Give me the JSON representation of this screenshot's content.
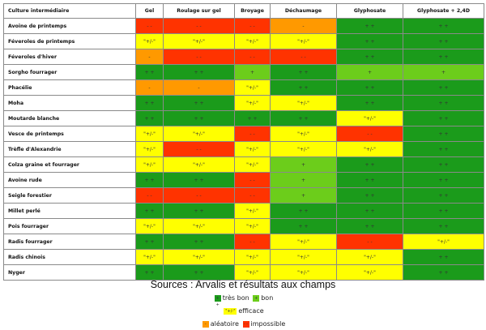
{
  "table": {
    "headers": [
      "Culture intermédiaire",
      "Gel",
      "Roulage sur gel",
      "Broyage",
      "Déchaumage",
      "Glyphosate",
      "Glyphosate + 2,4D"
    ],
    "rows": [
      {
        "name": "Avoine de printemps",
        "cells": [
          {
            "r": "im",
            "t": "- -"
          },
          {
            "r": "im",
            "t": "- -"
          },
          {
            "r": "im",
            "t": "- -"
          },
          {
            "r": "al",
            "t": "-"
          },
          {
            "r": "tb",
            "t": "+ +"
          },
          {
            "r": "tb",
            "t": "+ +"
          }
        ]
      },
      {
        "name": "Féveroles de printemps",
        "cells": [
          {
            "r": "ef",
            "t": "\"+/-\""
          },
          {
            "r": "ef",
            "t": "\"+/-\""
          },
          {
            "r": "ef",
            "t": "\"+/-\""
          },
          {
            "r": "ef",
            "t": "\"+/-\""
          },
          {
            "r": "tb",
            "t": "+ +"
          },
          {
            "r": "tb",
            "t": "+ +"
          }
        ]
      },
      {
        "name": "Féveroles d'hiver",
        "cells": [
          {
            "r": "al",
            "t": "-"
          },
          {
            "r": "im",
            "t": "- -"
          },
          {
            "r": "im",
            "t": "- -"
          },
          {
            "r": "im",
            "t": "- -"
          },
          {
            "r": "tb",
            "t": "+ +"
          },
          {
            "r": "tb",
            "t": "+ +"
          }
        ]
      },
      {
        "name": "Sorgho fourrager",
        "cells": [
          {
            "r": "tb",
            "t": "+ +"
          },
          {
            "r": "tb",
            "t": "+ +"
          },
          {
            "r": "bo",
            "t": "+"
          },
          {
            "r": "tb",
            "t": "+ +"
          },
          {
            "r": "bo",
            "t": "+"
          },
          {
            "r": "bo",
            "t": "+"
          }
        ]
      },
      {
        "name": "Phacélie",
        "cells": [
          {
            "r": "al",
            "t": "-"
          },
          {
            "r": "al",
            "t": "-"
          },
          {
            "r": "ef",
            "t": "\"+/-\""
          },
          {
            "r": "tb",
            "t": "+ +"
          },
          {
            "r": "tb",
            "t": "+ +"
          },
          {
            "r": "tb",
            "t": "+ +"
          }
        ]
      },
      {
        "name": "Moha",
        "cells": [
          {
            "r": "tb",
            "t": "+ +"
          },
          {
            "r": "tb",
            "t": "+ +"
          },
          {
            "r": "ef",
            "t": "\"+/-\""
          },
          {
            "r": "ef",
            "t": "\"+/-\""
          },
          {
            "r": "tb",
            "t": "+ +"
          },
          {
            "r": "tb",
            "t": "+ +"
          }
        ]
      },
      {
        "name": "Moutarde blanche",
        "cells": [
          {
            "r": "tb",
            "t": "+ +"
          },
          {
            "r": "tb",
            "t": "+ +"
          },
          {
            "r": "tb",
            "t": "+ +"
          },
          {
            "r": "tb",
            "t": "+ +"
          },
          {
            "r": "ef",
            "t": "\"+/-\""
          },
          {
            "r": "tb",
            "t": "+ +"
          }
        ]
      },
      {
        "name": "Vesce de printemps",
        "cells": [
          {
            "r": "ef",
            "t": "\"+/-\""
          },
          {
            "r": "ef",
            "t": "\"+/-\""
          },
          {
            "r": "im",
            "t": "- -"
          },
          {
            "r": "ef",
            "t": "\"+/-\""
          },
          {
            "r": "im",
            "t": "- -"
          },
          {
            "r": "tb",
            "t": "+ +"
          }
        ]
      },
      {
        "name": "Trèfle d'Alexandrie",
        "cells": [
          {
            "r": "ef",
            "t": "\"+/-\""
          },
          {
            "r": "im",
            "t": "- -"
          },
          {
            "r": "ef",
            "t": "\"+/-\""
          },
          {
            "r": "ef",
            "t": "\"+/-\""
          },
          {
            "r": "ef",
            "t": "\"+/-\""
          },
          {
            "r": "tb",
            "t": "+ +"
          }
        ]
      },
      {
        "name": "Colza graine et fourrager",
        "cells": [
          {
            "r": "ef",
            "t": "\"+/-\""
          },
          {
            "r": "ef",
            "t": "\"+/-\""
          },
          {
            "r": "ef",
            "t": "\"+/-\""
          },
          {
            "r": "bo",
            "t": "+"
          },
          {
            "r": "tb",
            "t": "+ +"
          },
          {
            "r": "tb",
            "t": "+ +"
          }
        ]
      },
      {
        "name": "Avoine rude",
        "cells": [
          {
            "r": "tb",
            "t": "+ +"
          },
          {
            "r": "tb",
            "t": "+ +"
          },
          {
            "r": "im",
            "t": "- -"
          },
          {
            "r": "bo",
            "t": "+"
          },
          {
            "r": "tb",
            "t": "+ +"
          },
          {
            "r": "tb",
            "t": "+ +"
          }
        ]
      },
      {
        "name": "Seigle forestier",
        "cells": [
          {
            "r": "im",
            "t": "- -"
          },
          {
            "r": "im",
            "t": "- -"
          },
          {
            "r": "im",
            "t": "- -"
          },
          {
            "r": "bo",
            "t": "+"
          },
          {
            "r": "tb",
            "t": "+ +"
          },
          {
            "r": "tb",
            "t": "+ +"
          }
        ]
      },
      {
        "name": "Millet perlé",
        "cells": [
          {
            "r": "tb",
            "t": "+ +"
          },
          {
            "r": "tb",
            "t": "+ +"
          },
          {
            "r": "ef",
            "t": "\"+/-\""
          },
          {
            "r": "tb",
            "t": "+ +"
          },
          {
            "r": "tb",
            "t": "+ +"
          },
          {
            "r": "tb",
            "t": "+ +"
          }
        ]
      },
      {
        "name": "Pois fourrager",
        "cells": [
          {
            "r": "ef",
            "t": "\"+/-\""
          },
          {
            "r": "ef",
            "t": "\"+/-\""
          },
          {
            "r": "ef",
            "t": "\"+/-\""
          },
          {
            "r": "tb",
            "t": "+ +"
          },
          {
            "r": "tb",
            "t": "+ +"
          },
          {
            "r": "tb",
            "t": "+ +"
          }
        ]
      },
      {
        "name": "Radis fourrager",
        "cells": [
          {
            "r": "tb",
            "t": "+ +"
          },
          {
            "r": "tb",
            "t": "+ +"
          },
          {
            "r": "im",
            "t": "- -"
          },
          {
            "r": "ef",
            "t": "\"+/-\""
          },
          {
            "r": "im",
            "t": "- -"
          },
          {
            "r": "ef",
            "t": "\"+/-\""
          }
        ]
      },
      {
        "name": "Radis chinois",
        "cells": [
          {
            "r": "ef",
            "t": "\"+/-\""
          },
          {
            "r": "ef",
            "t": "\"+/-\""
          },
          {
            "r": "ef",
            "t": "\"+/-\""
          },
          {
            "r": "ef",
            "t": "\"+/-\""
          },
          {
            "r": "ef",
            "t": "\"+/-\""
          },
          {
            "r": "tb",
            "t": "+ +"
          }
        ]
      },
      {
        "name": "Nyger",
        "cells": [
          {
            "r": "tb",
            "t": "+ +"
          },
          {
            "r": "tb",
            "t": "+ +"
          },
          {
            "r": "ef",
            "t": "\"+/-\""
          },
          {
            "r": "ef",
            "t": "\"+/-\""
          },
          {
            "r": "ef",
            "t": "\"+/-\""
          },
          {
            "r": "tb",
            "t": "+ +"
          }
        ]
      }
    ]
  },
  "colors": {
    "tb": "#1b9b1b",
    "bo": "#6ccd1b",
    "ef": "#ffff00",
    "al": "#ff9900",
    "im": "#ff3300"
  },
  "footer": {
    "sources": "Sources : Arvalis et résultats aux champs",
    "legend": {
      "tb_symbol": "+ +",
      "tb_label": "très bon",
      "bo_symbol": "+",
      "bo_label": "bon",
      "ef_symbol": "\"+/-\"",
      "ef_label": "efficace",
      "al_symbol": "-",
      "al_label": "aléatoire",
      "im_symbol": "- -",
      "im_label": "impossible"
    }
  }
}
